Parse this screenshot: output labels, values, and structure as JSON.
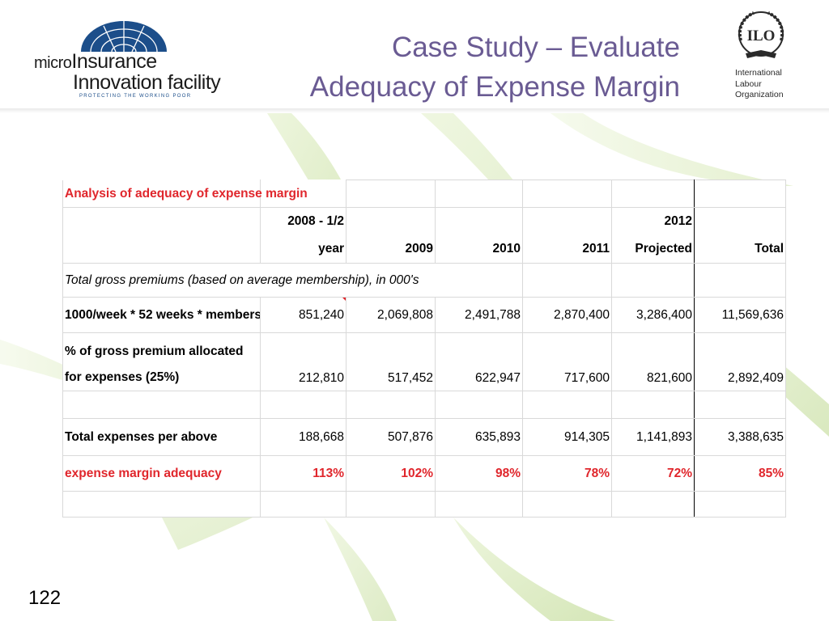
{
  "logos": {
    "microinsurance": {
      "line1_lead": "micro",
      "line1_main": "Insurance",
      "line2": "Innovation facility",
      "tagline": "PROTECTING THE WORKING POOR"
    },
    "ilo": {
      "emblem_text": "ILO",
      "name_lines": [
        "International",
        "Labour",
        "Organization"
      ]
    }
  },
  "title": {
    "line1": "Case Study – Evaluate",
    "line2": "Adequacy of Expense Margin"
  },
  "table": {
    "caption": "Analysis of adequacy of expense margin",
    "headers": [
      "2008 - 1/2 year",
      "2009",
      "2010",
      "2011",
      "2012 Projected",
      "Total"
    ],
    "section_note": "Total gross premiums (based on average membership), in 000's",
    "rows": [
      {
        "label": "1000/week * 52 weeks * members",
        "values": [
          "851,240",
          "2,069,808",
          "2,491,788",
          "2,870,400",
          "3,286,400",
          "11,569,636"
        ]
      },
      {
        "label": "% of gross premium allocated for expenses (25%)",
        "values": [
          "212,810",
          "517,452",
          "622,947",
          "717,600",
          "821,600",
          "2,892,409"
        ]
      },
      {
        "label": "Total expenses per above",
        "values": [
          "188,668",
          "507,876",
          "635,893",
          "914,305",
          "1,141,893",
          "3,388,635"
        ]
      },
      {
        "label": "expense margin adequacy",
        "values": [
          "113%",
          "102%",
          "98%",
          "78%",
          "72%",
          "85%"
        ]
      }
    ]
  },
  "page_number": "122",
  "colors": {
    "title": "#6a5b93",
    "highlight_red": "#e0262c",
    "background_leaf_green": "#b9d58a"
  }
}
